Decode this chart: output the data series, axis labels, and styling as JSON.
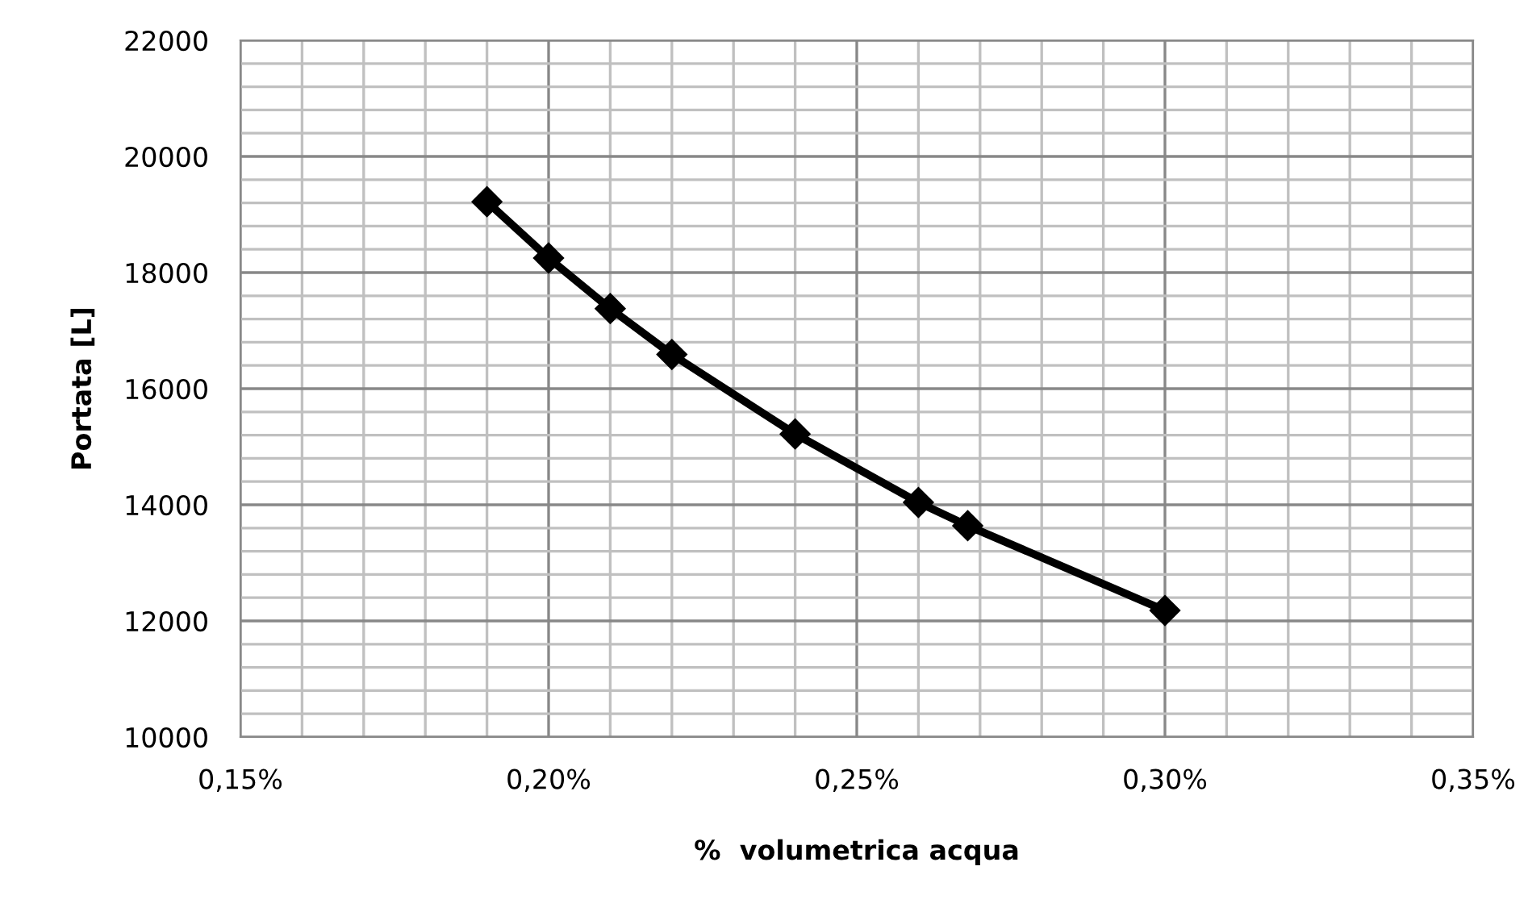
{
  "chart_data": {
    "type": "line",
    "xlabel": "%  volumetrica acqua",
    "ylabel": "Portata [L]",
    "x": [
      0.19,
      0.2,
      0.21,
      0.22,
      0.24,
      0.26,
      0.268,
      0.3
    ],
    "series": [
      {
        "color": "#000000",
        "values": [
          19220,
          18250,
          17380,
          16590,
          15220,
          14040,
          13640,
          12180
        ]
      }
    ],
    "xlim": [
      0.15,
      0.35
    ],
    "ylim": [
      10000,
      22000
    ],
    "xticks": [
      {
        "value": 0.15,
        "label": "0,15%"
      },
      {
        "value": 0.16,
        "label": null
      },
      {
        "value": 0.17,
        "label": null
      },
      {
        "value": 0.18,
        "label": null
      },
      {
        "value": 0.19,
        "label": null
      },
      {
        "value": 0.2,
        "label": "0,20%"
      },
      {
        "value": 0.21,
        "label": null
      },
      {
        "value": 0.22,
        "label": null
      },
      {
        "value": 0.23,
        "label": null
      },
      {
        "value": 0.24,
        "label": null
      },
      {
        "value": 0.25,
        "label": "0,25%"
      },
      {
        "value": 0.26,
        "label": null
      },
      {
        "value": 0.27,
        "label": null
      },
      {
        "value": 0.28,
        "label": null
      },
      {
        "value": 0.29,
        "label": null
      },
      {
        "value": 0.3,
        "label": "0,30%"
      },
      {
        "value": 0.31,
        "label": null
      },
      {
        "value": 0.32,
        "label": null
      },
      {
        "value": 0.33,
        "label": null
      },
      {
        "value": 0.34,
        "label": null
      },
      {
        "value": 0.35,
        "label": "0,35%"
      }
    ],
    "yticks": [
      10000,
      {
        "value": 10400,
        "label": null
      },
      {
        "value": 10800,
        "label": null
      },
      {
        "value": 11200,
        "label": null
      },
      {
        "value": 11600,
        "label": null
      },
      12000,
      {
        "value": 12400,
        "label": null
      },
      {
        "value": 12800,
        "label": null
      },
      {
        "value": 13200,
        "label": null
      },
      {
        "value": 13600,
        "label": null
      },
      14000,
      {
        "value": 14400,
        "label": null
      },
      {
        "value": 14800,
        "label": null
      },
      {
        "value": 15200,
        "label": null
      },
      {
        "value": 15600,
        "label": null
      },
      16000,
      {
        "value": 16400,
        "label": null
      },
      {
        "value": 16800,
        "label": null
      },
      {
        "value": 17200,
        "label": null
      },
      {
        "value": 17600,
        "label": null
      },
      18000,
      {
        "value": 18400,
        "label": null
      },
      {
        "value": 18800,
        "label": null
      },
      {
        "value": 19200,
        "label": null
      },
      {
        "value": 19600,
        "label": null
      },
      20000,
      {
        "value": 20400,
        "label": null
      },
      {
        "value": 20800,
        "label": null
      },
      {
        "value": 21200,
        "label": null
      },
      {
        "value": 21600,
        "label": null
      },
      22000
    ],
    "grid": true,
    "marker": "diamond",
    "line_style": "solid"
  }
}
